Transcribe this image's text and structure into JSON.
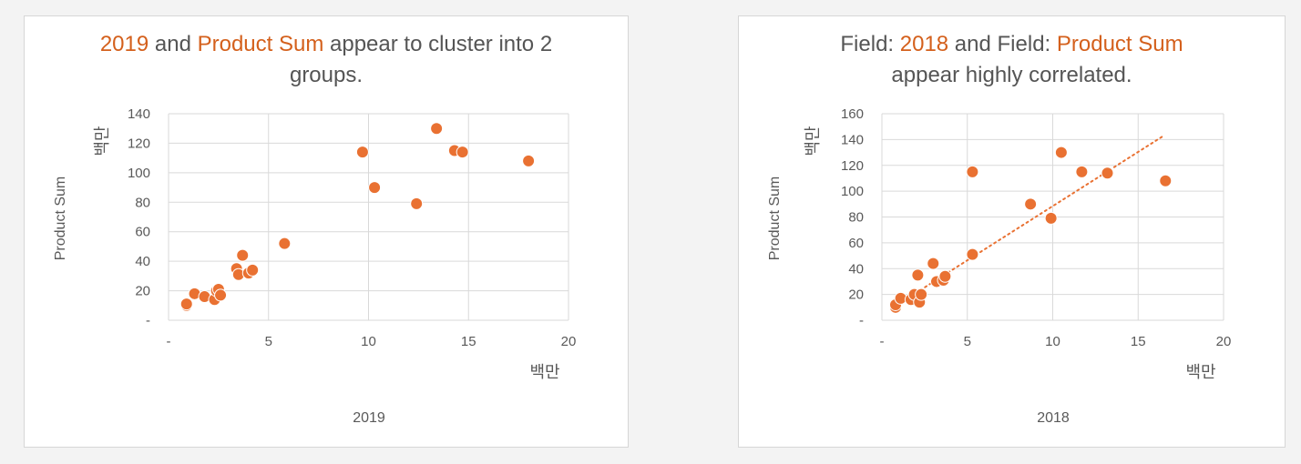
{
  "charts": {
    "left": {
      "title_parts": [
        {
          "text": "2019",
          "hl": true
        },
        {
          "text": " and ",
          "hl": false
        },
        {
          "text": "Product Sum",
          "hl": true
        },
        {
          "text": " appear to cluster into 2 groups.",
          "hl": false
        }
      ],
      "y_unit": "백만",
      "x_unit": "백만",
      "ylabel": "Product Sum",
      "xlabel": "2019"
    },
    "right": {
      "title_parts": [
        {
          "text": "Field: ",
          "hl": false
        },
        {
          "text": "2018",
          "hl": true
        },
        {
          "text": " and Field: ",
          "hl": false
        },
        {
          "text": "Product Sum",
          "hl": true
        },
        {
          "text": " appear highly correlated.",
          "hl": false
        }
      ],
      "y_unit": "백만",
      "x_unit": "백만",
      "ylabel": "Product Sum",
      "xlabel": "2018"
    }
  },
  "colors": {
    "accent": "#e97132",
    "grid": "#d9d9d9",
    "text": "#595959"
  },
  "chart_data": [
    {
      "type": "scatter",
      "xlabel": "2019",
      "ylabel": "Product Sum",
      "xlim": [
        0,
        20
      ],
      "ylim": [
        0,
        140
      ],
      "x_ticks": [
        0,
        5,
        10,
        15,
        20
      ],
      "y_ticks": [
        0,
        20,
        40,
        60,
        80,
        100,
        120,
        140
      ],
      "x_tick_labels": [
        "-",
        "5",
        "10",
        "15",
        "20"
      ],
      "y_tick_labels": [
        "-",
        "20",
        "40",
        "60",
        "80",
        "100",
        "120",
        "140"
      ],
      "grid": true,
      "trendline": false,
      "points": [
        {
          "x": 0.9,
          "y": 10
        },
        {
          "x": 0.9,
          "y": 11
        },
        {
          "x": 1.3,
          "y": 18
        },
        {
          "x": 1.8,
          "y": 16
        },
        {
          "x": 2.3,
          "y": 14
        },
        {
          "x": 2.4,
          "y": 20
        },
        {
          "x": 2.5,
          "y": 21
        },
        {
          "x": 2.6,
          "y": 17
        },
        {
          "x": 3.4,
          "y": 35
        },
        {
          "x": 3.5,
          "y": 31
        },
        {
          "x": 3.7,
          "y": 44
        },
        {
          "x": 4.0,
          "y": 32
        },
        {
          "x": 4.2,
          "y": 34
        },
        {
          "x": 5.8,
          "y": 52
        },
        {
          "x": 9.7,
          "y": 114
        },
        {
          "x": 10.3,
          "y": 90
        },
        {
          "x": 12.4,
          "y": 79
        },
        {
          "x": 13.4,
          "y": 130
        },
        {
          "x": 14.3,
          "y": 115
        },
        {
          "x": 14.7,
          "y": 114
        },
        {
          "x": 18.0,
          "y": 108
        }
      ]
    },
    {
      "type": "scatter",
      "xlabel": "2018",
      "ylabel": "Product Sum",
      "xlim": [
        0,
        20
      ],
      "ylim": [
        0,
        160
      ],
      "x_ticks": [
        0,
        5,
        10,
        15,
        20
      ],
      "y_ticks": [
        0,
        20,
        40,
        60,
        80,
        100,
        120,
        140,
        160
      ],
      "x_tick_labels": [
        "-",
        "5",
        "10",
        "15",
        "20"
      ],
      "y_tick_labels": [
        "-",
        "20",
        "40",
        "60",
        "80",
        "100",
        "120",
        "140",
        "160"
      ],
      "grid": true,
      "trendline": true,
      "trendline_range": [
        {
          "x": 0.9,
          "y": 12
        },
        {
          "x": 16.5,
          "y": 143
        }
      ],
      "points": [
        {
          "x": 0.8,
          "y": 10
        },
        {
          "x": 0.8,
          "y": 12
        },
        {
          "x": 1.1,
          "y": 17
        },
        {
          "x": 1.7,
          "y": 16
        },
        {
          "x": 1.9,
          "y": 20
        },
        {
          "x": 2.1,
          "y": 35
        },
        {
          "x": 2.2,
          "y": 14
        },
        {
          "x": 2.3,
          "y": 20
        },
        {
          "x": 3.0,
          "y": 44
        },
        {
          "x": 3.2,
          "y": 30
        },
        {
          "x": 3.6,
          "y": 31
        },
        {
          "x": 3.7,
          "y": 34
        },
        {
          "x": 5.3,
          "y": 51
        },
        {
          "x": 5.3,
          "y": 115
        },
        {
          "x": 8.7,
          "y": 90
        },
        {
          "x": 9.9,
          "y": 79
        },
        {
          "x": 10.5,
          "y": 130
        },
        {
          "x": 11.7,
          "y": 115
        },
        {
          "x": 13.2,
          "y": 114
        },
        {
          "x": 16.6,
          "y": 108
        }
      ]
    }
  ]
}
